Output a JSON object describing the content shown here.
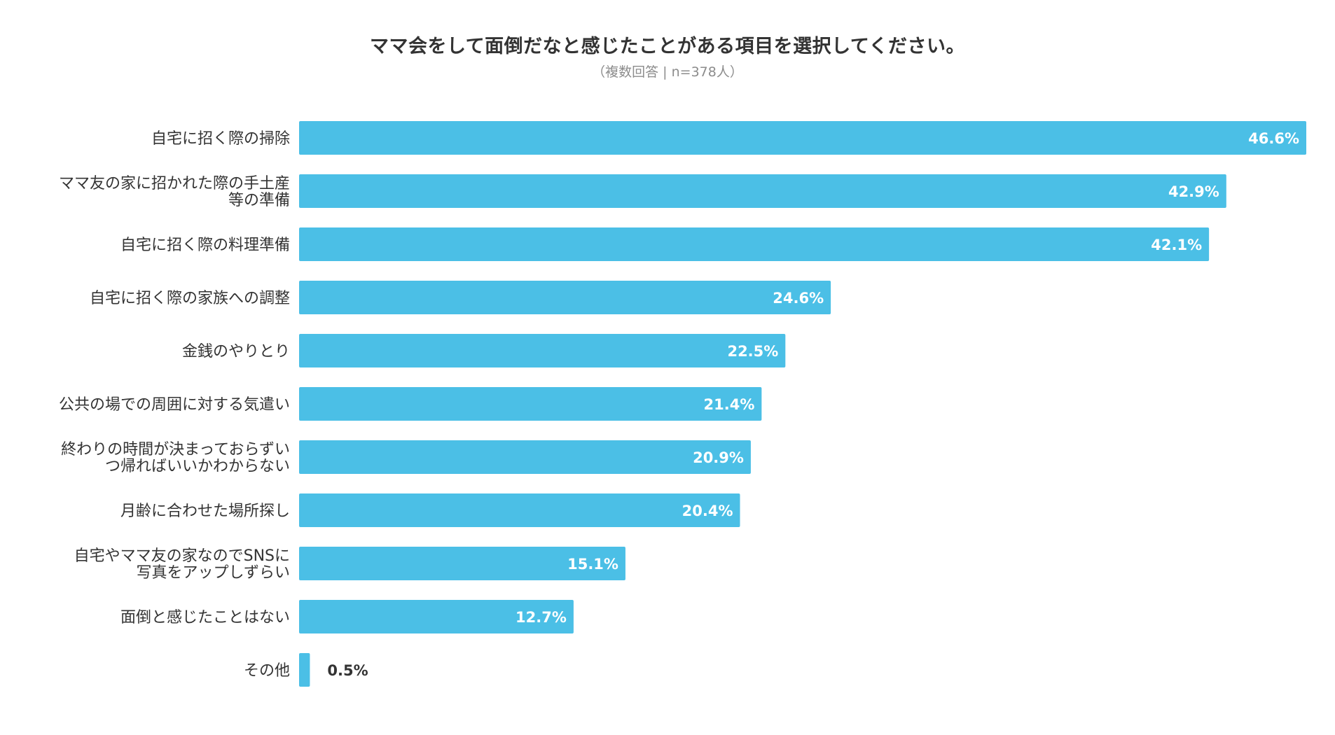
{
  "chart_data": {
    "type": "bar",
    "orientation": "horizontal",
    "title": "ママ会をして面倒だなと感じたことがある項目を選択してください。",
    "subtitle": "（複数回答 | n=378人）",
    "categories": [
      [
        "自宅に招く際の掃除"
      ],
      [
        "ママ友の家に招かれた際の手土産",
        "等の準備"
      ],
      [
        "自宅に招く際の料理準備"
      ],
      [
        "自宅に招く際の家族への調整"
      ],
      [
        "金銭のやりとり"
      ],
      [
        "公共の場での周囲に対する気遣い"
      ],
      [
        "終わりの時間が決まっておらずい",
        "つ帰ればいいかわからない"
      ],
      [
        "月齢に合わせた場所探し"
      ],
      [
        "自宅やママ友の家なのでSNSに",
        "写真をアップしずらい"
      ],
      [
        "面倒と感じたことはない"
      ],
      [
        "その他"
      ]
    ],
    "values": [
      46.6,
      42.9,
      42.1,
      24.6,
      22.5,
      21.4,
      20.9,
      20.4,
      15.1,
      12.7,
      0.5
    ],
    "value_labels": [
      "46.6%",
      "42.9%",
      "42.1%",
      "24.6%",
      "22.5%",
      "21.4%",
      "20.9%",
      "20.4%",
      "15.1%",
      "12.7%",
      "0.5%"
    ],
    "unit": "%",
    "xlim": [
      0,
      46.6
    ],
    "grid": false,
    "legend": "none",
    "bar_color": "#4bbfe6",
    "inside_label_color": "#ffffff",
    "outside_label_color": "#333333"
  }
}
